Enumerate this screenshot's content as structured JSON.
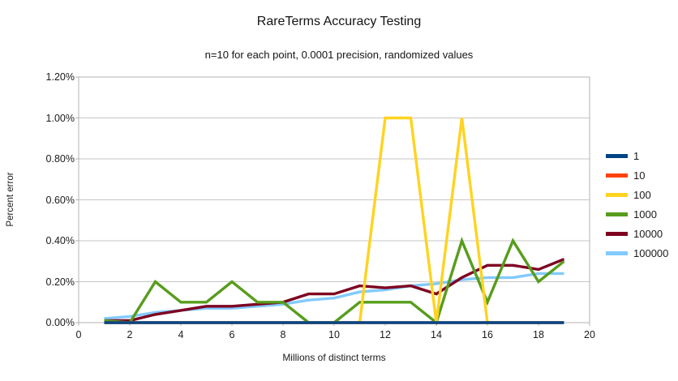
{
  "chart_data": {
    "type": "line",
    "title": "RareTerms Accuracy Testing",
    "subtitle": "n=10 for each point, 0.0001 precision, randomized values",
    "xlabel": "Millions of distinct terms",
    "ylabel": "Percent error",
    "xlim": [
      0,
      20
    ],
    "ylim_percent": [
      0.0,
      1.2
    ],
    "grid": true,
    "legend_position": "right",
    "x_tick_labels": [
      "0",
      "2",
      "4",
      "6",
      "8",
      "10",
      "12",
      "14",
      "16",
      "18",
      "20"
    ],
    "x_tick_values": [
      0,
      2,
      4,
      6,
      8,
      10,
      12,
      14,
      16,
      18,
      20
    ],
    "y_tick_labels": [
      "0.00%",
      "0.20%",
      "0.40%",
      "0.60%",
      "0.80%",
      "1.00%",
      "1.20%"
    ],
    "y_tick_values": [
      0.0,
      0.2,
      0.4,
      0.6,
      0.8,
      1.0,
      1.2
    ],
    "x": [
      1,
      2,
      3,
      4,
      5,
      6,
      7,
      8,
      9,
      10,
      11,
      12,
      13,
      14,
      15,
      16,
      17,
      18,
      19
    ],
    "series": [
      {
        "name": "1",
        "color": "#004586",
        "values": [
          0,
          0,
          0,
          0,
          0,
          0,
          0,
          0,
          0,
          0,
          0,
          0,
          0,
          0,
          0,
          0,
          0,
          0,
          0
        ]
      },
      {
        "name": "10",
        "color": "#ff420e",
        "values": [
          0,
          0,
          0,
          0,
          0,
          0,
          0,
          0,
          0,
          0,
          0,
          0,
          0,
          0,
          0,
          0,
          0,
          0,
          0
        ]
      },
      {
        "name": "100",
        "color": "#ffd320",
        "values": [
          0,
          0,
          0,
          0,
          0,
          0,
          0,
          0,
          0,
          0,
          0,
          1.0,
          1.0,
          0,
          1.0,
          0,
          0,
          0,
          0
        ]
      },
      {
        "name": "1000",
        "color": "#579d1c",
        "values": [
          0.01,
          0,
          0.2,
          0.1,
          0.1,
          0.2,
          0.1,
          0.1,
          0,
          0,
          0.1,
          0.1,
          0.1,
          0,
          0.4,
          0.1,
          0.4,
          0.2,
          0.3
        ]
      },
      {
        "name": "10000",
        "color": "#7e0021",
        "values": [
          0.01,
          0.01,
          0.04,
          0.06,
          0.08,
          0.08,
          0.09,
          0.1,
          0.14,
          0.14,
          0.18,
          0.17,
          0.18,
          0.14,
          0.22,
          0.28,
          0.28,
          0.26,
          0.31
        ]
      },
      {
        "name": "100000",
        "color": "#83caff",
        "values": [
          0.02,
          0.03,
          0.05,
          0.06,
          0.07,
          0.07,
          0.08,
          0.09,
          0.11,
          0.12,
          0.15,
          0.16,
          0.18,
          0.19,
          0.21,
          0.22,
          0.22,
          0.24,
          0.24
        ]
      }
    ]
  }
}
